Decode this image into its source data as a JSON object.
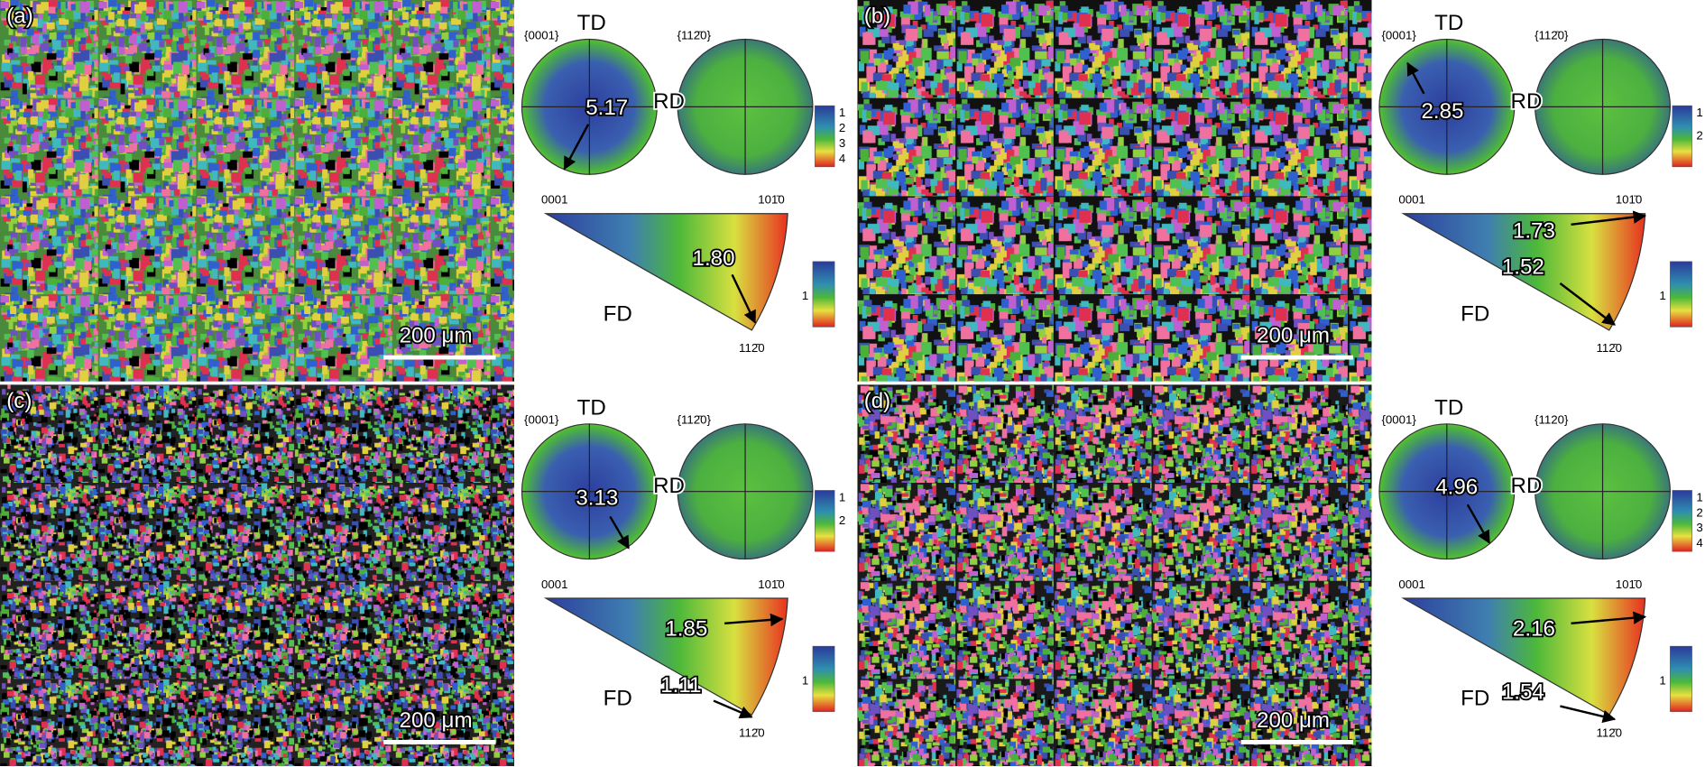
{
  "panels": [
    {
      "label": "(a)",
      "scale_bar": "200 μm",
      "pole_figure": {
        "plane_1": "{0001}",
        "plane_2": "{112̄0}",
        "td": "TD",
        "rd": "RD",
        "max": "5.17",
        "legend": [
          "1",
          "2",
          "3",
          "4"
        ]
      },
      "ipf": {
        "corner_0001": "0001",
        "corner_1010": "101̄0",
        "corner_1120": "112̄0",
        "fd": "FD",
        "maxima": [
          "1.80"
        ],
        "legend": [
          "1"
        ]
      }
    },
    {
      "label": "(b)",
      "scale_bar": "200 μm",
      "pole_figure": {
        "plane_1": "{0001}",
        "plane_2": "{112̄0}",
        "td": "TD",
        "rd": "RD",
        "max": "2.85",
        "legend": [
          "1",
          "2"
        ]
      },
      "ipf": {
        "corner_0001": "0001",
        "corner_1010": "101̄0",
        "corner_1120": "112̄0",
        "fd": "FD",
        "maxima": [
          "1.73",
          "1.52"
        ],
        "legend": [
          "1"
        ]
      }
    },
    {
      "label": "(c)",
      "scale_bar": "200 μm",
      "pole_figure": {
        "plane_1": "{0001}",
        "plane_2": "{112̄0}",
        "td": "TD",
        "rd": "RD",
        "max": "3.13",
        "legend": [
          "1",
          "2"
        ]
      },
      "ipf": {
        "corner_0001": "0001",
        "corner_1010": "101̄0",
        "corner_1120": "112̄0",
        "fd": "FD",
        "maxima": [
          "1.85",
          "1.11"
        ],
        "legend": [
          "1"
        ]
      }
    },
    {
      "label": "(d)",
      "scale_bar": "200 μm",
      "pole_figure": {
        "plane_1": "{0001}",
        "plane_2": "{1120}",
        "td": "TD",
        "rd": "RD",
        "max": "4.96",
        "legend": [
          "1",
          "2",
          "3",
          "4"
        ]
      },
      "ipf": {
        "corner_0001": "0001",
        "corner_1010": "101̄0",
        "corner_1120": "112̄0",
        "fd": "FD",
        "maxima": [
          "2.16",
          "1.54"
        ],
        "legend": [
          "1"
        ]
      }
    }
  ]
}
